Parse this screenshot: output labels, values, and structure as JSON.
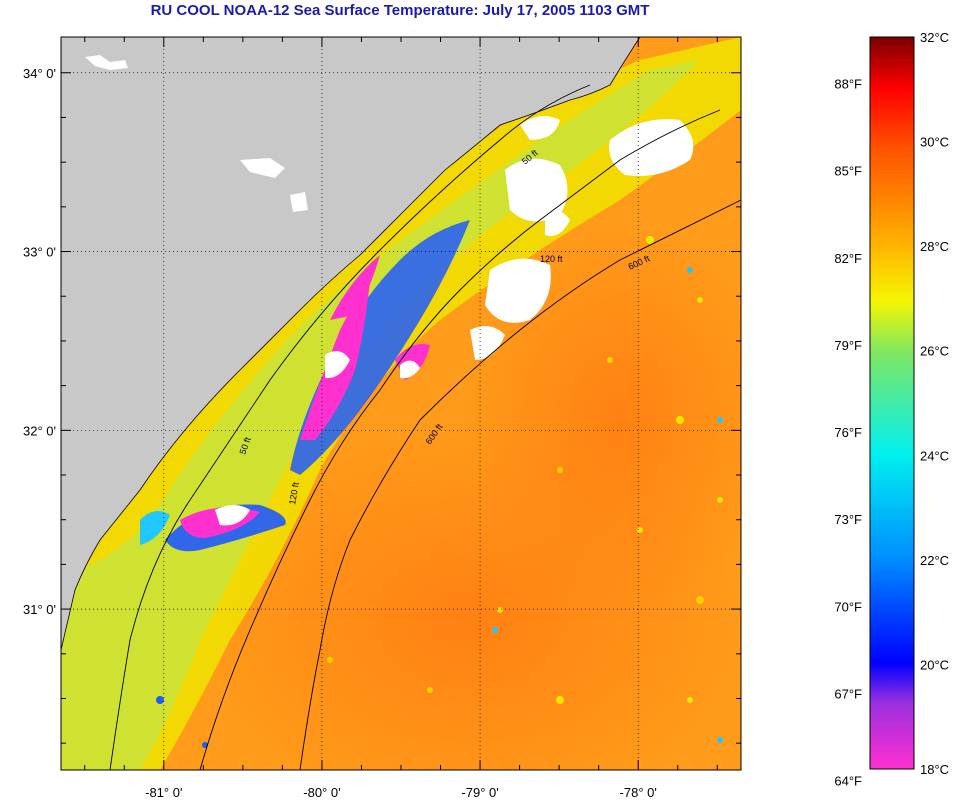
{
  "title": "RU COOL  NOAA-12  Sea Surface Temperature:  July 17, 2005 1103 GMT",
  "axes": {
    "lat_labels": [
      {
        "value": 34,
        "label": "34° 0'"
      },
      {
        "value": 33,
        "label": "33° 0'"
      },
      {
        "value": 32,
        "label": "32° 0'"
      },
      {
        "value": 31,
        "label": "31° 0'"
      }
    ],
    "lon_labels": [
      {
        "value": -81,
        "label": "-81° 0'"
      },
      {
        "value": -80,
        "label": "-80° 0'"
      },
      {
        "value": -79,
        "label": "-79° 0'"
      },
      {
        "value": -78,
        "label": "-78° 0'"
      }
    ],
    "lon_range": [
      -81.65,
      -77.35
    ],
    "lat_range": [
      30.1,
      34.2
    ],
    "grid": "dotted"
  },
  "contours": {
    "labels": [
      "50 ft",
      "120 ft",
      "600 ft"
    ]
  },
  "colorbar": {
    "celsius": [
      {
        "value": 32,
        "label": "32°C"
      },
      {
        "value": 30,
        "label": "30°C"
      },
      {
        "value": 28,
        "label": "28°C"
      },
      {
        "value": 26,
        "label": "26°C"
      },
      {
        "value": 24,
        "label": "24°C"
      },
      {
        "value": 22,
        "label": "22°C"
      },
      {
        "value": 20,
        "label": "20°C"
      },
      {
        "value": 18,
        "label": "18°C"
      }
    ],
    "fahrenheit": [
      {
        "value": 88,
        "label": "88°F"
      },
      {
        "value": 85,
        "label": "85°F"
      },
      {
        "value": 82,
        "label": "82°F"
      },
      {
        "value": 79,
        "label": "79°F"
      },
      {
        "value": 76,
        "label": "76°F"
      },
      {
        "value": 73,
        "label": "73°F"
      },
      {
        "value": 70,
        "label": "70°F"
      },
      {
        "value": 67,
        "label": "67°F"
      },
      {
        "value": 64,
        "label": "64°F"
      }
    ],
    "range_c": [
      18,
      32
    ],
    "colors": {
      "hot": "#7a0000",
      "warm": "#ff7a00",
      "mid": "#f5f500",
      "cool": "#00e5e5",
      "cold": "#0000ff",
      "coldest": "#ff30d0"
    }
  },
  "colors": {
    "land": "#c8c8c8",
    "ocean_base": "#ff9b1a",
    "cloud": "#ffffff",
    "coast": "#000000",
    "title": "#1a1ab0"
  }
}
